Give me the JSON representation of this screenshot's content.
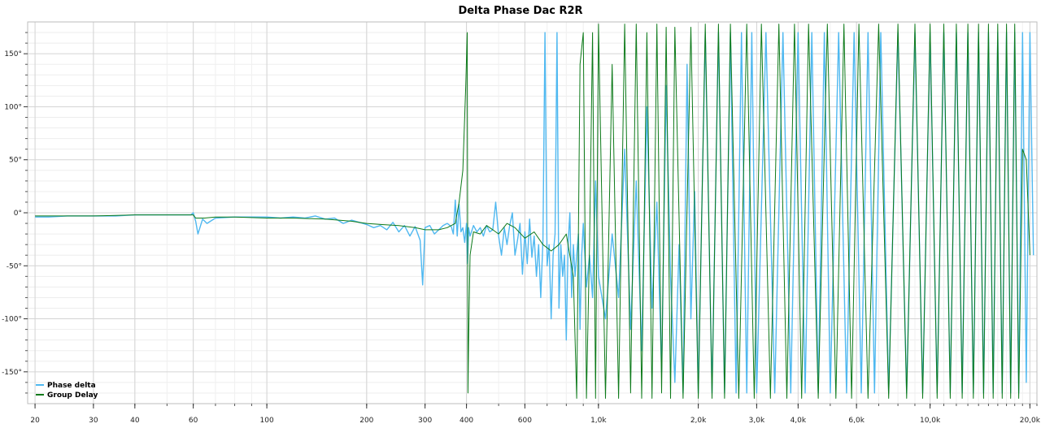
{
  "chart_data": {
    "type": "line",
    "title": "Delta Phase Dac R2R",
    "x_scale": "log",
    "xlim": [
      19,
      21000
    ],
    "ylim": [
      -180,
      180
    ],
    "x_ticks_major": [
      {
        "value": 20,
        "label": "20"
      },
      {
        "value": 30,
        "label": "30"
      },
      {
        "value": 40,
        "label": "40"
      },
      {
        "value": 60,
        "label": "60"
      },
      {
        "value": 100,
        "label": "100"
      },
      {
        "value": 200,
        "label": "200"
      },
      {
        "value": 300,
        "label": "300"
      },
      {
        "value": 400,
        "label": "400"
      },
      {
        "value": 600,
        "label": "600"
      },
      {
        "value": 1000,
        "label": "1,0k"
      },
      {
        "value": 2000,
        "label": "2,0k"
      },
      {
        "value": 3000,
        "label": "3,0k"
      },
      {
        "value": 4000,
        "label": "4,0k"
      },
      {
        "value": 6000,
        "label": "6,0k"
      },
      {
        "value": 10000,
        "label": "10,0k"
      },
      {
        "value": 20000,
        "label": "20,0k"
      }
    ],
    "y_ticks_major": [
      {
        "value": 150,
        "label": "150°"
      },
      {
        "value": 100,
        "label": "100°"
      },
      {
        "value": 50,
        "label": "50°"
      },
      {
        "value": 0,
        "label": "0°"
      },
      {
        "value": -50,
        "label": "-50°"
      },
      {
        "value": -100,
        "label": "-100°"
      },
      {
        "value": -150,
        "label": "-150°"
      }
    ],
    "grid": true,
    "legend_position": "bottom-left",
    "series": [
      {
        "name": "Phase delta",
        "color": "#4fb8f0",
        "points": [
          [
            20,
            -4
          ],
          [
            22,
            -4
          ],
          [
            25,
            -3
          ],
          [
            28,
            -3
          ],
          [
            30,
            -3
          ],
          [
            35,
            -3
          ],
          [
            40,
            -2
          ],
          [
            45,
            -2
          ],
          [
            50,
            -2
          ],
          [
            55,
            -2
          ],
          [
            59,
            -2
          ],
          [
            60,
            0
          ],
          [
            61,
            -8
          ],
          [
            62,
            -20
          ],
          [
            64,
            -6
          ],
          [
            66,
            -10
          ],
          [
            70,
            -5
          ],
          [
            80,
            -4
          ],
          [
            90,
            -4
          ],
          [
            100,
            -4
          ],
          [
            110,
            -5
          ],
          [
            120,
            -4
          ],
          [
            130,
            -5
          ],
          [
            140,
            -3
          ],
          [
            150,
            -6
          ],
          [
            160,
            -5
          ],
          [
            170,
            -10
          ],
          [
            180,
            -7
          ],
          [
            190,
            -9
          ],
          [
            200,
            -11
          ],
          [
            210,
            -14
          ],
          [
            220,
            -12
          ],
          [
            230,
            -16
          ],
          [
            240,
            -9
          ],
          [
            250,
            -18
          ],
          [
            260,
            -12
          ],
          [
            270,
            -22
          ],
          [
            280,
            -13
          ],
          [
            290,
            -26
          ],
          [
            295,
            -68
          ],
          [
            300,
            -14
          ],
          [
            310,
            -12
          ],
          [
            320,
            -20
          ],
          [
            330,
            -16
          ],
          [
            340,
            -12
          ],
          [
            350,
            -10
          ],
          [
            360,
            -13
          ],
          [
            365,
            -20
          ],
          [
            370,
            12
          ],
          [
            375,
            -22
          ],
          [
            380,
            8
          ],
          [
            385,
            -18
          ],
          [
            390,
            -14
          ],
          [
            395,
            -28
          ],
          [
            400,
            -10
          ],
          [
            403,
            -48
          ],
          [
            406,
            -14
          ],
          [
            410,
            -22
          ],
          [
            420,
            -12
          ],
          [
            430,
            -18
          ],
          [
            440,
            -14
          ],
          [
            450,
            -22
          ],
          [
            460,
            -12
          ],
          [
            470,
            -18
          ],
          [
            480,
            -16
          ],
          [
            490,
            10
          ],
          [
            500,
            -22
          ],
          [
            510,
            -40
          ],
          [
            520,
            -14
          ],
          [
            530,
            -30
          ],
          [
            540,
            -12
          ],
          [
            550,
            0
          ],
          [
            560,
            -40
          ],
          [
            570,
            -26
          ],
          [
            580,
            -10
          ],
          [
            590,
            -58
          ],
          [
            600,
            -18
          ],
          [
            610,
            -48
          ],
          [
            620,
            -6
          ],
          [
            630,
            -42
          ],
          [
            640,
            -22
          ],
          [
            650,
            -60
          ],
          [
            660,
            -30
          ],
          [
            670,
            -80
          ],
          [
            680,
            -26
          ],
          [
            690,
            170
          ],
          [
            700,
            -50
          ],
          [
            710,
            -30
          ],
          [
            720,
            -100
          ],
          [
            730,
            -40
          ],
          [
            740,
            -20
          ],
          [
            750,
            170
          ],
          [
            760,
            -90
          ],
          [
            770,
            -30
          ],
          [
            780,
            -60
          ],
          [
            790,
            -40
          ],
          [
            800,
            -120
          ],
          [
            810,
            -30
          ],
          [
            820,
            0
          ],
          [
            830,
            -80
          ],
          [
            840,
            -30
          ],
          [
            850,
            -60
          ],
          [
            860,
            -40
          ],
          [
            870,
            -20
          ],
          [
            880,
            -110
          ],
          [
            890,
            -40
          ],
          [
            900,
            -10
          ],
          [
            920,
            -70
          ],
          [
            940,
            -40
          ],
          [
            960,
            -80
          ],
          [
            980,
            30
          ],
          [
            1000,
            -60
          ],
          [
            1050,
            -100
          ],
          [
            1100,
            -20
          ],
          [
            1150,
            -80
          ],
          [
            1200,
            60
          ],
          [
            1250,
            -110
          ],
          [
            1300,
            30
          ],
          [
            1350,
            -130
          ],
          [
            1400,
            100
          ],
          [
            1450,
            -90
          ],
          [
            1500,
            10
          ],
          [
            1550,
            -150
          ],
          [
            1600,
            120
          ],
          [
            1650,
            -60
          ],
          [
            1700,
            -160
          ],
          [
            1750,
            -30
          ],
          [
            1800,
            -170
          ],
          [
            1850,
            140
          ],
          [
            1900,
            -100
          ],
          [
            1950,
            20
          ],
          [
            2000,
            -170
          ],
          [
            2100,
            170
          ],
          [
            2200,
            -170
          ],
          [
            2300,
            170
          ],
          [
            2400,
            -170
          ],
          [
            2500,
            170
          ],
          [
            2600,
            -170
          ],
          [
            2700,
            170
          ],
          [
            2800,
            -170
          ],
          [
            2900,
            170
          ],
          [
            3000,
            -170
          ],
          [
            3200,
            170
          ],
          [
            3400,
            -170
          ],
          [
            3600,
            170
          ],
          [
            3800,
            -170
          ],
          [
            4000,
            170
          ],
          [
            4200,
            -170
          ],
          [
            4400,
            170
          ],
          [
            4600,
            -170
          ],
          [
            4800,
            170
          ],
          [
            5000,
            -170
          ],
          [
            5300,
            170
          ],
          [
            5600,
            -170
          ],
          [
            5900,
            170
          ],
          [
            6200,
            -170
          ],
          [
            6500,
            170
          ],
          [
            6800,
            -170
          ],
          [
            7100,
            170
          ],
          [
            7500,
            -170
          ],
          [
            8000,
            170
          ],
          [
            8500,
            -170
          ],
          [
            9000,
            170
          ],
          [
            9500,
            -170
          ],
          [
            10000,
            170
          ],
          [
            10500,
            -170
          ],
          [
            11000,
            170
          ],
          [
            11500,
            -170
          ],
          [
            12000,
            170
          ],
          [
            12500,
            -170
          ],
          [
            13000,
            170
          ],
          [
            13500,
            -170
          ],
          [
            14000,
            170
          ],
          [
            14500,
            -170
          ],
          [
            15000,
            170
          ],
          [
            15500,
            -170
          ],
          [
            16000,
            170
          ],
          [
            16500,
            -170
          ],
          [
            17000,
            170
          ],
          [
            17500,
            -170
          ],
          [
            18000,
            170
          ],
          [
            18500,
            -170
          ],
          [
            19000,
            170
          ],
          [
            19500,
            -160
          ],
          [
            20000,
            170
          ],
          [
            20500,
            -40
          ]
        ]
      },
      {
        "name": "Group Delay",
        "color": "#0d7a1a",
        "points": [
          [
            20,
            -3
          ],
          [
            25,
            -3
          ],
          [
            30,
            -3
          ],
          [
            40,
            -2
          ],
          [
            50,
            -2
          ],
          [
            60,
            -2
          ],
          [
            61,
            -5
          ],
          [
            65,
            -5
          ],
          [
            70,
            -4
          ],
          [
            80,
            -4
          ],
          [
            100,
            -5
          ],
          [
            120,
            -5
          ],
          [
            150,
            -6
          ],
          [
            180,
            -8
          ],
          [
            200,
            -10
          ],
          [
            220,
            -11
          ],
          [
            250,
            -12
          ],
          [
            280,
            -14
          ],
          [
            300,
            -16
          ],
          [
            330,
            -16
          ],
          [
            350,
            -14
          ],
          [
            370,
            -10
          ],
          [
            380,
            10
          ],
          [
            390,
            40
          ],
          [
            398,
            120
          ],
          [
            402,
            170
          ],
          [
            404,
            -170
          ],
          [
            406,
            -120
          ],
          [
            410,
            -40
          ],
          [
            420,
            -18
          ],
          [
            440,
            -20
          ],
          [
            460,
            -12
          ],
          [
            480,
            -16
          ],
          [
            500,
            -20
          ],
          [
            530,
            -10
          ],
          [
            560,
            -14
          ],
          [
            600,
            -24
          ],
          [
            640,
            -18
          ],
          [
            680,
            -30
          ],
          [
            720,
            -36
          ],
          [
            760,
            -30
          ],
          [
            800,
            -20
          ],
          [
            840,
            -60
          ],
          [
            860,
            -175
          ],
          [
            870,
            -20
          ],
          [
            880,
            140
          ],
          [
            900,
            170
          ],
          [
            920,
            -175
          ],
          [
            940,
            -30
          ],
          [
            960,
            170
          ],
          [
            980,
            -175
          ],
          [
            1000,
            178
          ],
          [
            1050,
            -175
          ],
          [
            1100,
            140
          ],
          [
            1150,
            -175
          ],
          [
            1200,
            178
          ],
          [
            1250,
            -170
          ],
          [
            1300,
            178
          ],
          [
            1350,
            -175
          ],
          [
            1400,
            170
          ],
          [
            1450,
            -175
          ],
          [
            1500,
            178
          ],
          [
            1550,
            -170
          ],
          [
            1600,
            175
          ],
          [
            1650,
            -175
          ],
          [
            1700,
            175
          ],
          [
            1800,
            -175
          ],
          [
            1900,
            175
          ],
          [
            2000,
            -175
          ],
          [
            2100,
            178
          ],
          [
            2200,
            -175
          ],
          [
            2300,
            178
          ],
          [
            2400,
            -175
          ],
          [
            2500,
            178
          ],
          [
            2650,
            -175
          ],
          [
            2800,
            178
          ],
          [
            2950,
            -175
          ],
          [
            3100,
            178
          ],
          [
            3300,
            -175
          ],
          [
            3500,
            178
          ],
          [
            3700,
            -175
          ],
          [
            3900,
            178
          ],
          [
            4100,
            -175
          ],
          [
            4300,
            178
          ],
          [
            4600,
            -175
          ],
          [
            4900,
            178
          ],
          [
            5200,
            -175
          ],
          [
            5500,
            178
          ],
          [
            5800,
            -175
          ],
          [
            6100,
            178
          ],
          [
            6500,
            -175
          ],
          [
            7000,
            178
          ],
          [
            7500,
            -175
          ],
          [
            8000,
            178
          ],
          [
            8500,
            -175
          ],
          [
            9000,
            178
          ],
          [
            9500,
            -175
          ],
          [
            10000,
            178
          ],
          [
            10500,
            -175
          ],
          [
            11000,
            178
          ],
          [
            11500,
            -175
          ],
          [
            12000,
            178
          ],
          [
            12500,
            -175
          ],
          [
            13000,
            178
          ],
          [
            13500,
            -175
          ],
          [
            14000,
            178
          ],
          [
            14500,
            -175
          ],
          [
            15000,
            178
          ],
          [
            15500,
            -175
          ],
          [
            16000,
            178
          ],
          [
            16500,
            -175
          ],
          [
            17000,
            178
          ],
          [
            17500,
            -175
          ],
          [
            18000,
            178
          ],
          [
            18500,
            -175
          ],
          [
            19000,
            60
          ],
          [
            19500,
            50
          ],
          [
            20000,
            -40
          ]
        ]
      }
    ]
  }
}
